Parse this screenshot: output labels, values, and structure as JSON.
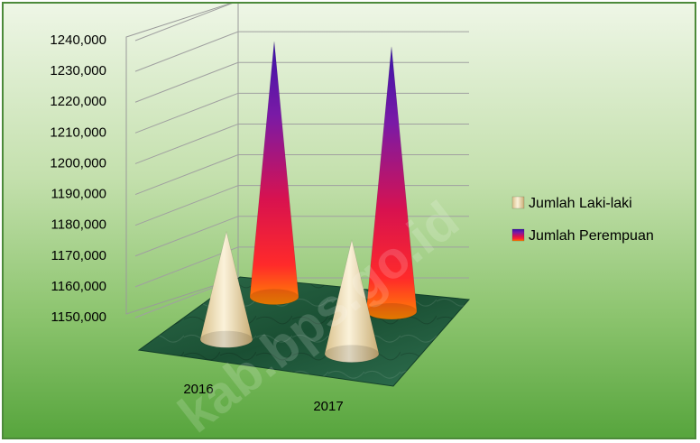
{
  "chart_data": {
    "type": "bar",
    "shape": "cone-3d",
    "title": "",
    "xlabel": "",
    "ylabel": "",
    "categories": [
      "2016",
      "2017"
    ],
    "series": [
      {
        "name": "Jumlah Laki-laki",
        "values": [
          1185000,
          1187000
        ],
        "color": "#f1ddb0"
      },
      {
        "name": "Jumlah Perempuan",
        "values": [
          1233000,
          1236000
        ],
        "color": "#d8124f"
      }
    ],
    "ylim": [
      1150000,
      1240000
    ],
    "yticks": [
      "1150,000",
      "1160,000",
      "1170,000",
      "1180,000",
      "1190,000",
      "1200,000",
      "1210,000",
      "1220,000",
      "1230,000",
      "1240,000"
    ],
    "grid": true,
    "legend_position": "right"
  },
  "watermark": "kab.bps.go.id",
  "colors": {
    "floor": "#1f5a3c",
    "frame_border": "#4c8a3a",
    "female_tip": "#3a14a8",
    "female_base": "#ff8a00",
    "male_light": "#fbf2da"
  }
}
